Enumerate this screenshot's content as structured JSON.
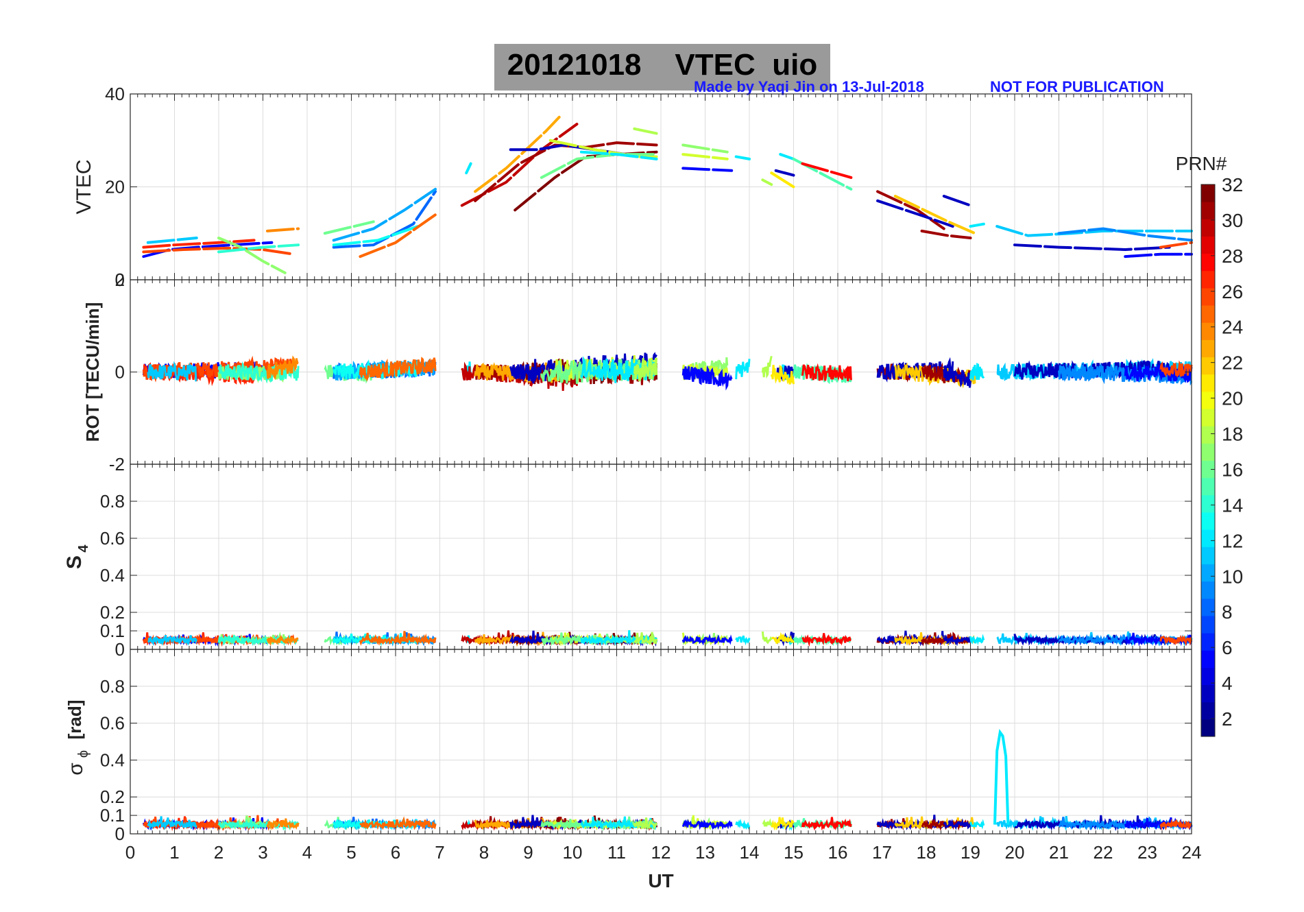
{
  "header": {
    "title": "20121018    VTEC  uio",
    "credit": "Made by Yaqi Jin on 13-Jul-2018",
    "notice": "NOT FOR PUBLICATION"
  },
  "colorbar": {
    "title": "PRN#",
    "ticks": [
      "2",
      "4",
      "6",
      "8",
      "10",
      "12",
      "14",
      "16",
      "18",
      "20",
      "22",
      "24",
      "26",
      "28",
      "30",
      "32"
    ],
    "range": [
      1,
      32
    ],
    "colormap": "jet"
  },
  "chart_data": [
    {
      "type": "line",
      "panel": "VTEC",
      "ylabel": "VTEC",
      "xlim": [
        0,
        24
      ],
      "ylim": [
        0,
        40
      ],
      "ytick_labels": [
        "0",
        "20",
        "40"
      ],
      "grid": true,
      "series": [
        {
          "prn": 5,
          "points": [
            [
              0.3,
              5
            ],
            [
              0.9,
              6.5
            ],
            [
              1.5,
              7
            ],
            [
              2.3,
              7.5
            ],
            [
              3.2,
              8
            ]
          ]
        },
        {
          "prn": 27,
          "points": [
            [
              0.3,
              7
            ],
            [
              1.0,
              7.5
            ],
            [
              2.0,
              8
            ],
            [
              2.8,
              8.5
            ]
          ]
        },
        {
          "prn": 26,
          "points": [
            [
              0.3,
              6
            ],
            [
              1.2,
              6.5
            ],
            [
              2.2,
              6.8
            ],
            [
              3.0,
              6.5
            ],
            [
              3.7,
              5.5
            ]
          ]
        },
        {
          "prn": 11,
          "points": [
            [
              0.4,
              8
            ],
            [
              1.5,
              9
            ]
          ]
        },
        {
          "prn": 17,
          "points": [
            [
              2.0,
              9
            ],
            [
              2.5,
              7
            ],
            [
              3.0,
              4
            ],
            [
              3.5,
              1.5
            ]
          ]
        },
        {
          "prn": 14,
          "points": [
            [
              2.0,
              6
            ],
            [
              3.0,
              7
            ],
            [
              3.8,
              7.5
            ]
          ]
        },
        {
          "prn": 24,
          "points": [
            [
              3.1,
              10.5
            ],
            [
              3.8,
              11
            ]
          ]
        },
        {
          "prn": 16,
          "points": [
            [
              4.4,
              10
            ],
            [
              5.5,
              12.5
            ]
          ]
        },
        {
          "prn": 8,
          "points": [
            [
              4.6,
              7
            ],
            [
              5.5,
              7.5
            ],
            [
              6.4,
              12
            ],
            [
              6.9,
              19
            ]
          ]
        },
        {
          "prn": 10,
          "points": [
            [
              4.6,
              8.5
            ],
            [
              5.5,
              11
            ],
            [
              6.2,
              15
            ],
            [
              6.9,
              19.5
            ]
          ]
        },
        {
          "prn": 13,
          "points": [
            [
              4.6,
              7.5
            ],
            [
              5.6,
              8.5
            ],
            [
              6.5,
              11.5
            ]
          ]
        },
        {
          "prn": 25,
          "points": [
            [
              5.2,
              5
            ],
            [
              6.0,
              8
            ],
            [
              6.9,
              14
            ]
          ]
        },
        {
          "prn": 12,
          "points": [
            [
              7.6,
              23
            ],
            [
              7.7,
              25
            ]
          ]
        },
        {
          "prn": 30,
          "points": [
            [
              7.5,
              16
            ],
            [
              8.5,
              21
            ],
            [
              9.3,
              28
            ],
            [
              10.1,
              33.5
            ]
          ]
        },
        {
          "prn": 31,
          "points": [
            [
              7.8,
              17
            ],
            [
              8.8,
              25
            ],
            [
              9.6,
              29
            ],
            [
              10.3,
              28.5
            ],
            [
              11,
              29.5
            ],
            [
              11.9,
              29
            ]
          ]
        },
        {
          "prn": 23,
          "points": [
            [
              7.8,
              19
            ],
            [
              8.5,
              24
            ],
            [
              9.4,
              32
            ],
            [
              9.7,
              35
            ]
          ]
        },
        {
          "prn": 32,
          "points": [
            [
              8.7,
              15
            ],
            [
              9.6,
              22
            ],
            [
              10.3,
              26.5
            ],
            [
              11.9,
              27.5
            ]
          ]
        },
        {
          "prn": 3,
          "points": [
            [
              8.6,
              28
            ],
            [
              9.2,
              28
            ],
            [
              9.8,
              29
            ],
            [
              10.5,
              28
            ],
            [
              11.9,
              26
            ]
          ]
        },
        {
          "prn": 19,
          "points": [
            [
              9.5,
              30
            ],
            [
              10.5,
              28
            ],
            [
              11.5,
              26.5
            ],
            [
              11.9,
              26.5
            ]
          ]
        },
        {
          "prn": 16,
          "points": [
            [
              9.3,
              22
            ],
            [
              10.1,
              26
            ],
            [
              11.0,
              27
            ],
            [
              11.9,
              27
            ]
          ]
        },
        {
          "prn": 12,
          "points": [
            [
              10.2,
              27.5
            ],
            [
              11.0,
              27
            ],
            [
              11.9,
              26
            ]
          ]
        },
        {
          "prn": 18,
          "points": [
            [
              11.4,
              32.5
            ],
            [
              11.9,
              31.5
            ]
          ]
        },
        {
          "prn": 17,
          "points": [
            [
              12.5,
              29
            ],
            [
              13.5,
              27.5
            ]
          ]
        },
        {
          "prn": 19,
          "points": [
            [
              12.5,
              27
            ],
            [
              13.5,
              26
            ]
          ]
        },
        {
          "prn": 5,
          "points": [
            [
              12.5,
              24
            ],
            [
              13.6,
              23.5
            ]
          ]
        },
        {
          "prn": 12,
          "points": [
            [
              13.7,
              26.5
            ],
            [
              14.0,
              26
            ]
          ]
        },
        {
          "prn": 12,
          "points": [
            [
              14.7,
              27
            ],
            [
              15.0,
              26
            ]
          ]
        },
        {
          "prn": 3,
          "points": [
            [
              14.6,
              23.5
            ],
            [
              15.0,
              22.5
            ]
          ]
        },
        {
          "prn": 21,
          "points": [
            [
              14.5,
              23
            ],
            [
              15.0,
              20
            ]
          ]
        },
        {
          "prn": 18,
          "points": [
            [
              14.3,
              21.5
            ],
            [
              14.5,
              20.5
            ]
          ]
        },
        {
          "prn": 15,
          "points": [
            [
              15.0,
              26
            ],
            [
              16.0,
              21
            ],
            [
              16.3,
              19.5
            ]
          ]
        },
        {
          "prn": 28,
          "points": [
            [
              15.2,
              25
            ],
            [
              16.3,
              22
            ]
          ]
        },
        {
          "prn": 31,
          "points": [
            [
              16.9,
              19
            ],
            [
              17.8,
              15
            ],
            [
              18.4,
              11
            ]
          ]
        },
        {
          "prn": 3,
          "points": [
            [
              16.9,
              17
            ],
            [
              18.0,
              13.5
            ],
            [
              18.6,
              11.5
            ]
          ]
        },
        {
          "prn": 22,
          "points": [
            [
              17.3,
              18
            ],
            [
              18.5,
              12.5
            ],
            [
              19.1,
              10
            ]
          ]
        },
        {
          "prn": 31,
          "points": [
            [
              17.9,
              10.5
            ],
            [
              18.5,
              9.5
            ],
            [
              19.0,
              9
            ]
          ]
        },
        {
          "prn": 3,
          "points": [
            [
              18.4,
              18
            ],
            [
              19.0,
              16
            ]
          ]
        },
        {
          "prn": 12,
          "points": [
            [
              19.0,
              11.5
            ],
            [
              19.3,
              12
            ]
          ]
        },
        {
          "prn": 11,
          "points": [
            [
              19.6,
              11.5
            ],
            [
              20.3,
              9.5
            ],
            [
              21.3,
              10
            ],
            [
              22.0,
              10.5
            ],
            [
              23.0,
              10.5
            ],
            [
              24.0,
              10.5
            ]
          ]
        },
        {
          "prn": 3,
          "points": [
            [
              20.0,
              7.5
            ],
            [
              21.0,
              7
            ],
            [
              22.5,
              6.5
            ],
            [
              23.5,
              7
            ]
          ]
        },
        {
          "prn": 9,
          "points": [
            [
              21.0,
              10
            ],
            [
              22.0,
              11
            ],
            [
              23.0,
              9.5
            ],
            [
              24.0,
              8.5
            ]
          ]
        },
        {
          "prn": 5,
          "points": [
            [
              22.5,
              5
            ],
            [
              23.3,
              5.5
            ],
            [
              24.0,
              5.5
            ]
          ]
        },
        {
          "prn": 26,
          "points": [
            [
              23.3,
              7
            ],
            [
              24.0,
              8
            ]
          ]
        }
      ]
    },
    {
      "type": "line",
      "panel": "ROT",
      "ylabel": "ROT [TECU/min]",
      "xlim": [
        0,
        24
      ],
      "ylim": [
        -2,
        2
      ],
      "ytick_labels": [
        "-2",
        "0",
        "2"
      ],
      "grid": true,
      "generated": "noisy ROT traces per PRN around 0"
    },
    {
      "type": "line",
      "panel": "S4",
      "ylabel": "S4",
      "xlim": [
        0,
        24
      ],
      "ylim": [
        0,
        1
      ],
      "ytick_labels": [
        "0",
        "0.1",
        "0.2",
        "0.4",
        "0.6",
        "0.8"
      ],
      "grid": true,
      "typical_level": 0.05
    },
    {
      "type": "line",
      "panel": "sigma_phi",
      "ylabel": "σ",
      "ylabel_sub": "ϕ",
      "ylabel_unit": "[rad]",
      "xlabel": "UT",
      "xlim": [
        0,
        24
      ],
      "ylim": [
        0,
        1
      ],
      "xtick_labels": [
        "0",
        "1",
        "2",
        "3",
        "4",
        "5",
        "6",
        "7",
        "8",
        "9",
        "10",
        "11",
        "12",
        "13",
        "14",
        "15",
        "16",
        "17",
        "18",
        "19",
        "20",
        "21",
        "22",
        "23",
        "24"
      ],
      "ytick_labels": [
        "0",
        "0.1",
        "0.2",
        "0.4",
        "0.6",
        "0.8"
      ],
      "grid": true,
      "typical_level": 0.05,
      "spike": {
        "prn": 12,
        "x": [
          19.55,
          19.85
        ],
        "peak": 0.55
      }
    }
  ]
}
